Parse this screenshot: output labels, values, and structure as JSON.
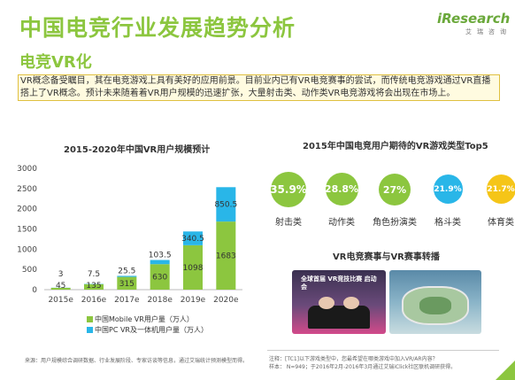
{
  "header": {
    "title": "中国电竞行业发展趋势分析",
    "subtitle": "电竞VR化",
    "logo_main": "iResearch",
    "logo_sub": "艾瑞咨询"
  },
  "intro_text": "VR概念备受瞩目，其在电竞游戏上具有美好的应用前景。目前业内已有VR电竞赛事的尝试，而传统电竞游戏通过VR直播搭上了VR概念。预计未来随着着VR用户规模的迅速扩张，大量射击类、动作类VR电竞游戏将会出现在市场上。",
  "chart_data": [
    {
      "type": "bar",
      "stacked": true,
      "title": "2015-2020年中国VR用户规模预计",
      "categories": [
        "2015e",
        "2016e",
        "2017e",
        "2018e",
        "2019e",
        "2020e"
      ],
      "series": [
        {
          "name": "中国Mobile VR用户量（万人）",
          "color": "#8cc63f",
          "values": [
            45,
            135,
            315,
            630,
            1098,
            1683
          ]
        },
        {
          "name": "中国PC VR及一体机用户量（万人）",
          "color": "#29b6e8",
          "values": [
            3,
            7.5,
            25.5,
            103.5,
            340.5,
            850.5
          ]
        }
      ],
      "value_labels": {
        "bottom": [
          "45",
          "135",
          "315",
          "630",
          "1098",
          "1683"
        ],
        "top": [
          "3",
          "7.5",
          "25.5",
          "103.5",
          "340.5",
          "850.5"
        ]
      },
      "y_ticks": [
        "0",
        "500",
        "1000",
        "1500",
        "2000",
        "2500",
        "3000"
      ],
      "ylim": [
        0,
        3000
      ],
      "legend_position": "bottom"
    },
    {
      "type": "bubble",
      "title": "2015年中国电竞用户期待的VR游戏类型Top5",
      "categories": [
        "射击类",
        "动作类",
        "角色扮演类",
        "格斗类",
        "体育类"
      ],
      "value_labels": [
        "35.9%",
        "28.8%",
        "27%",
        "21.9%",
        "21.7%"
      ],
      "values": [
        35.9,
        28.8,
        27,
        21.9,
        21.7
      ],
      "colors": [
        "#8cc63f",
        "#8cc63f",
        "#8cc63f",
        "#29b6e8",
        "#f5c518"
      ]
    }
  ],
  "vr_section": {
    "title": "VR电竞赛事与VR赛事转播",
    "photo1_caption": "全球首届 VR竞技比赛 启动会",
    "photo2_caption": ""
  },
  "notes": {
    "source_left": "来源：用户规模综合调研数据、行业发展阶段、专家访谈等信息，通过艾瑞统计预测模型而得。",
    "source_right_1": "注释：[TC1]以下游戏类型中，您最希望在哪类游戏中加入VR/AR内容？",
    "source_right_2": "样本：  N=949；于2016年2月-2016年3月通过艾瑞iClick社区联机调研获得。"
  }
}
